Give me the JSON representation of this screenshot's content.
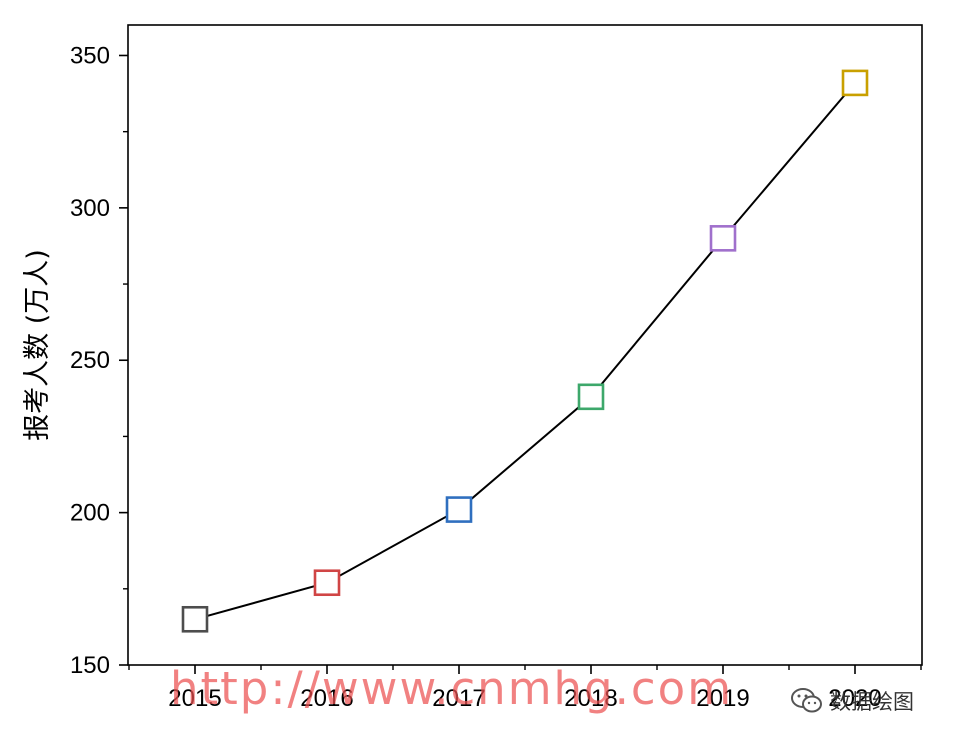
{
  "chart_data": {
    "type": "line",
    "title": "",
    "xlabel": "",
    "ylabel": "报考人数 (万人)",
    "categories": [
      "2015",
      "2016",
      "2017",
      "2018",
      "2019",
      "2020"
    ],
    "values": [
      165,
      177,
      201,
      238,
      290,
      341
    ],
    "marker_colors": [
      "#4d4d4d",
      "#d04545",
      "#2f6fbf",
      "#3da86b",
      "#a070cc",
      "#c9a000"
    ],
    "line_color": "#000000",
    "marker": "open-square",
    "ylim": [
      150,
      360
    ],
    "yticks": [
      150,
      200,
      250,
      300,
      350
    ],
    "ytick_labels": [
      "150",
      "200",
      "250",
      "300",
      "350"
    ],
    "grid": false,
    "legend": "none"
  },
  "watermark": {
    "text": "http://www.cnmhg.com"
  },
  "brand": {
    "icon": "wechat-icon",
    "label": "数据绘图"
  }
}
